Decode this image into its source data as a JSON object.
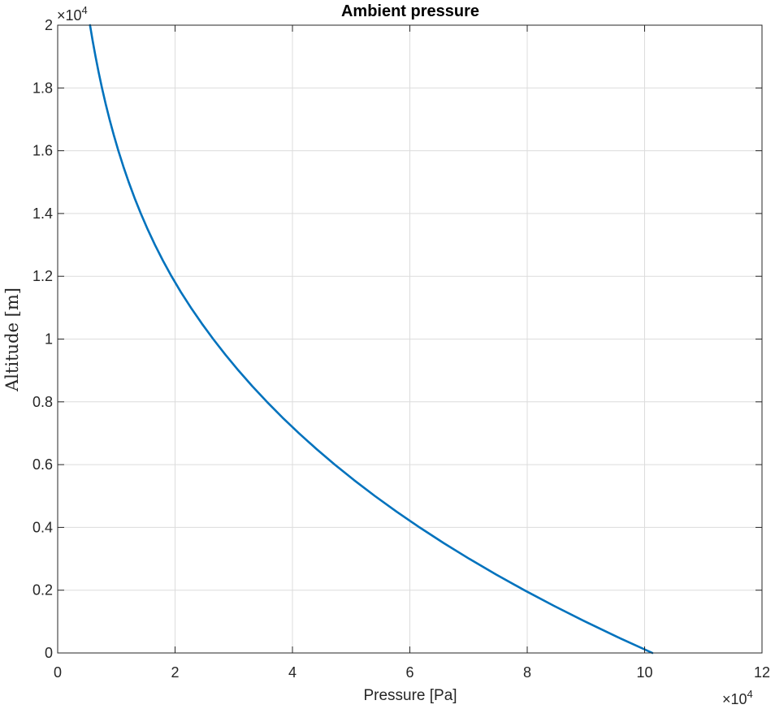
{
  "chart_data": {
    "type": "line",
    "title": "Ambient pressure",
    "xlabel": "Pressure [Pa]",
    "ylabel": "Altitude [m]",
    "xlim": [
      0,
      120000
    ],
    "ylim": [
      0,
      20000
    ],
    "x_ticks": [
      0,
      20000,
      40000,
      60000,
      80000,
      100000,
      120000
    ],
    "x_tick_labels": [
      "0",
      "2",
      "4",
      "6",
      "8",
      "10",
      "12"
    ],
    "y_ticks": [
      0,
      2000,
      4000,
      6000,
      8000,
      10000,
      12000,
      14000,
      16000,
      18000,
      20000
    ],
    "y_tick_labels": [
      "0",
      "0.2",
      "0.4",
      "0.6",
      "0.8",
      "1",
      "1.2",
      "1.4",
      "1.6",
      "1.8",
      "2"
    ],
    "x_multiplier": {
      "base": "×10",
      "exponent": "4"
    },
    "y_multiplier": {
      "base": "×10",
      "exponent": "4"
    },
    "grid": true,
    "line_color": "#0072BD",
    "series": [
      {
        "x": [
          101325,
          95461,
          89876,
          84559,
          79501,
          74691,
          70121,
          65780,
          61660,
          57752,
          54048,
          50539,
          47217,
          44075,
          41105,
          38299,
          35651,
          33154,
          30800,
          28584,
          26499,
          24540,
          22699,
          20984,
          19398,
          17932,
          16576,
          15322,
          14163,
          13092,
          12102,
          11186,
          10340,
          9558,
          8835,
          8167,
          7549,
          6978,
          6451,
          5963,
          5512
        ],
        "y": [
          0,
          500,
          1000,
          1500,
          2000,
          2500,
          3000,
          3500,
          4000,
          4500,
          5000,
          5500,
          6000,
          6500,
          7000,
          7500,
          8000,
          8500,
          9000,
          9500,
          10000,
          10500,
          11000,
          11500,
          12000,
          12500,
          13000,
          13500,
          14000,
          14500,
          15000,
          15500,
          16000,
          16500,
          17000,
          17500,
          18000,
          18500,
          19000,
          19500,
          20000
        ]
      }
    ]
  }
}
